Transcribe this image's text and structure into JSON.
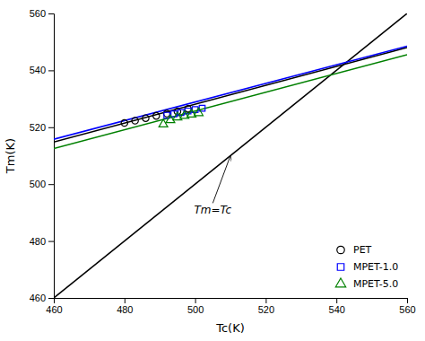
{
  "chart_data": {
    "type": "scatter",
    "xlabel": "Tc(K)",
    "ylabel": "Tm(K)",
    "xlim": [
      460,
      560
    ],
    "ylim": [
      460,
      560
    ],
    "xticks": [
      460,
      480,
      500,
      520,
      540,
      560
    ],
    "yticks": [
      460,
      480,
      500,
      520,
      540,
      560
    ],
    "grid": false,
    "legend": "lower right",
    "series": [
      {
        "type": "line",
        "color": "#000000",
        "line_style": "solid",
        "x": [
          460,
          560
        ],
        "values": [
          460,
          560
        ]
      },
      {
        "type": "line",
        "color": "#000000",
        "line_style": "solid",
        "x": [
          460,
          560
        ],
        "values": [
          514.8,
          548.0
        ]
      },
      {
        "type": "line",
        "color": "#0000FF",
        "line_style": "solid",
        "x": [
          460,
          560
        ],
        "values": [
          515.8,
          548.5
        ]
      },
      {
        "type": "line",
        "color": "#008000",
        "line_style": "solid",
        "x": [
          460,
          560
        ],
        "values": [
          512.5,
          545.5
        ]
      },
      {
        "name": "PET",
        "type": "scatter",
        "marker": "circle",
        "color": "#000000",
        "x": [
          480,
          483,
          486,
          489,
          492,
          495,
          498
        ],
        "values": [
          521.5,
          522.3,
          523.2,
          524.0,
          524.8,
          525.5,
          526.5
        ]
      },
      {
        "name": "MPET-1.0",
        "type": "scatter",
        "marker": "square",
        "color": "#0000FF",
        "x": [
          492,
          494,
          496,
          498,
          500,
          502
        ],
        "values": [
          524.2,
          524.7,
          525.2,
          525.7,
          526.2,
          526.7
        ]
      },
      {
        "name": "MPET-5.0",
        "type": "scatter",
        "marker": "triangle",
        "color": "#008000",
        "x": [
          491,
          493,
          495,
          497,
          499,
          501
        ],
        "values": [
          521.0,
          522.5,
          523.5,
          524.0,
          524.5,
          525.0
        ]
      }
    ],
    "annotations": [
      {
        "text": "Tm=Tc",
        "x": 505,
        "y": 493,
        "arrow_x": 510,
        "arrow_y": 510
      }
    ]
  }
}
